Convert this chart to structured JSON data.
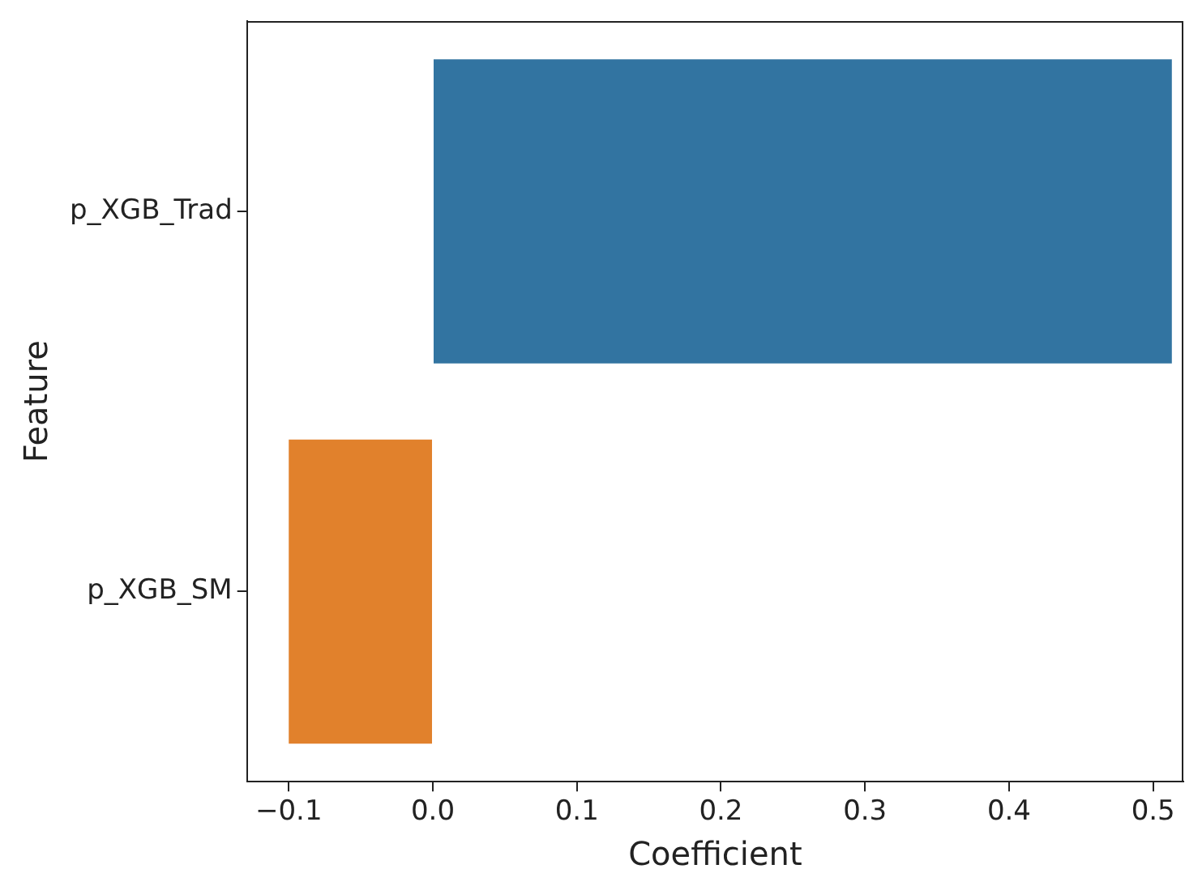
{
  "chart_data": {
    "type": "bar",
    "orientation": "horizontal",
    "xlabel": "Coefficient",
    "ylabel": "Feature",
    "categories": [
      "p_XGB_Trad",
      "p_XGB_SM"
    ],
    "values": [
      0.513,
      -0.1
    ],
    "colors": [
      "#3274a1",
      "#e1812c"
    ],
    "xlim": [
      -0.129,
      0.521
    ],
    "xticks": [
      {
        "value": -0.1,
        "label": "−0.1"
      },
      {
        "value": 0,
        "label": "0.0"
      },
      {
        "value": 0.1,
        "label": "0.1"
      },
      {
        "value": 0.2,
        "label": "0.2"
      },
      {
        "value": 0.3,
        "label": "0.3"
      },
      {
        "value": 0.4,
        "label": "0.4"
      },
      {
        "value": 0.5,
        "label": "0.5"
      }
    ],
    "grid": false,
    "legend": false
  }
}
